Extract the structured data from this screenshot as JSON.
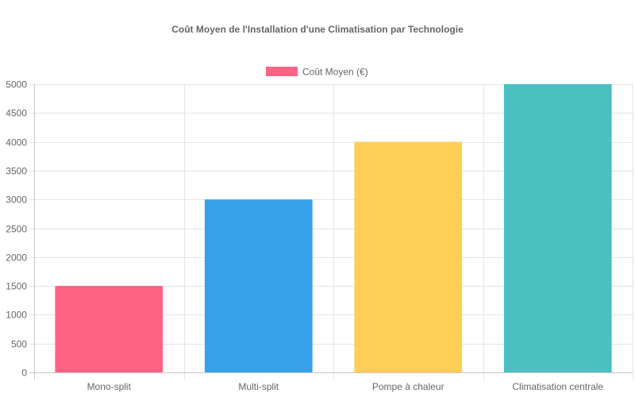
{
  "chart_data": {
    "type": "bar",
    "title": "Coût Moyen de l'Installation d'une Climatisation par Technologie",
    "categories": [
      "Mono-split",
      "Multi-split",
      "Pompe à chaleur",
      "Climatisation centrale"
    ],
    "series": [
      {
        "name": "Coût Moyen (€)",
        "values": [
          1500,
          3000,
          4000,
          5000
        ],
        "colors": [
          "#ff6384",
          "#36a2eb",
          "#ffce56",
          "#4bc0c0"
        ]
      }
    ],
    "legend_color": "#ff6384",
    "yticks": [
      0,
      500,
      1000,
      1500,
      2000,
      2500,
      3000,
      3500,
      4000,
      4500,
      5000
    ],
    "ylim": [
      0,
      5000
    ],
    "grid": true,
    "legend_position": "top"
  }
}
